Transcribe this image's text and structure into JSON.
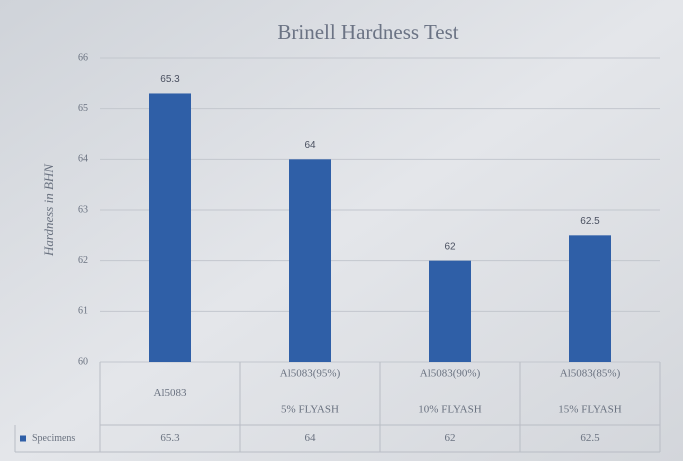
{
  "chart_data": {
    "type": "bar",
    "title": "Brinell Hardness Test",
    "y_label": "Hardness in BHN",
    "categories": [
      [
        "Al5083"
      ],
      [
        "Al5083(95%)",
        "5% FLYASH"
      ],
      [
        "Al5083(90%)",
        "10% FLYASH"
      ],
      [
        "Al5083(85%)",
        "15% FLYASH"
      ]
    ],
    "series": [
      {
        "name": "Specimens",
        "color": "#2f5fa7",
        "values": [
          65.3,
          64,
          62,
          62.5
        ]
      }
    ],
    "ylim": [
      60,
      66
    ],
    "yticks": [
      60,
      61,
      62,
      63,
      64,
      65,
      66
    ],
    "grid": true,
    "data_table": true
  }
}
